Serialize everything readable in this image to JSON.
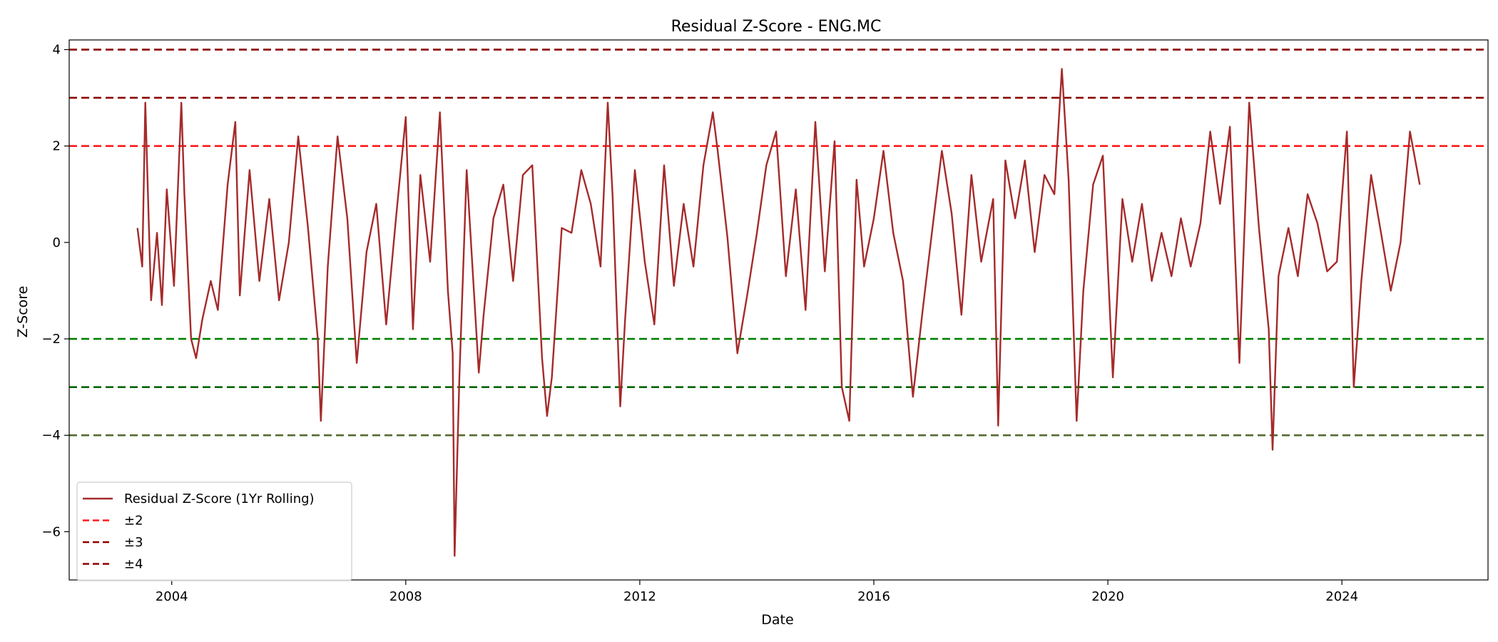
{
  "chart_data": {
    "type": "line",
    "title": "Residual Z-Score - ENG.MC",
    "xlabel": "Date",
    "ylabel": "Z-Score",
    "xlim": [
      "2002-04-01",
      "2026-07-01"
    ],
    "ylim": [
      -7.0,
      4.2
    ],
    "x_ticks": [
      "2004",
      "2008",
      "2012",
      "2016",
      "2020",
      "2024"
    ],
    "y_ticks": [
      -6,
      -4,
      -2,
      0,
      2,
      4
    ],
    "y_tick_labels": [
      "−6",
      "−4",
      "−2",
      "0",
      "2",
      "4"
    ],
    "grid": false,
    "legend_position": "lower-left",
    "series": [
      {
        "name": "Residual Z-Score (1Yr Rolling)",
        "color": "#a52a2a",
        "x": [
          "2003-06-01",
          "2003-07-01",
          "2003-07-20",
          "2003-08-10",
          "2003-08-25",
          "2003-10-01",
          "2003-11-01",
          "2003-12-01",
          "2004-01-15",
          "2004-03-01",
          "2004-03-20",
          "2004-05-01",
          "2004-06-01",
          "2004-07-10",
          "2004-09-01",
          "2004-10-15",
          "2004-12-15",
          "2005-02-01",
          "2005-03-01",
          "2005-05-01",
          "2005-07-01",
          "2005-09-01",
          "2005-11-01",
          "2006-01-01",
          "2006-03-01",
          "2006-05-01",
          "2006-07-01",
          "2006-07-20",
          "2006-09-01",
          "2006-11-01",
          "2007-01-01",
          "2007-03-01",
          "2007-05-01",
          "2007-07-01",
          "2007-09-01",
          "2007-11-01",
          "2008-01-01",
          "2008-02-15",
          "2008-04-01",
          "2008-06-01",
          "2008-08-01",
          "2008-09-20",
          "2008-10-20",
          "2008-11-01",
          "2008-12-01",
          "2009-01-15",
          "2009-04-01",
          "2009-05-01",
          "2009-07-01",
          "2009-09-01",
          "2009-11-01",
          "2010-01-01",
          "2010-03-01",
          "2010-05-01",
          "2010-06-01",
          "2010-07-01",
          "2010-09-01",
          "2010-11-01",
          "2011-01-01",
          "2011-03-01",
          "2011-05-01",
          "2011-06-15",
          "2011-07-15",
          "2011-09-01",
          "2011-10-01",
          "2011-12-01",
          "2012-02-01",
          "2012-04-01",
          "2012-06-01",
          "2012-08-01",
          "2012-10-01",
          "2012-12-01",
          "2013-02-01",
          "2013-04-01",
          "2013-05-01",
          "2013-07-01",
          "2013-09-01",
          "2013-11-01",
          "2014-01-01",
          "2014-03-01",
          "2014-05-01",
          "2014-07-01",
          "2014-09-01",
          "2014-11-01",
          "2015-01-01",
          "2015-03-01",
          "2015-05-01",
          "2015-06-15",
          "2015-08-01",
          "2015-09-15",
          "2015-11-01",
          "2016-01-01",
          "2016-03-01",
          "2016-05-01",
          "2016-07-01",
          "2016-09-01",
          "2016-11-01",
          "2017-01-01",
          "2017-03-01",
          "2017-05-01",
          "2017-07-01",
          "2017-09-01",
          "2017-11-01",
          "2018-01-15",
          "2018-02-15",
          "2018-04-01",
          "2018-06-01",
          "2018-08-01",
          "2018-10-01",
          "2018-12-01",
          "2019-02-01",
          "2019-03-20",
          "2019-05-01",
          "2019-06-20",
          "2019-08-01",
          "2019-10-01",
          "2019-12-01",
          "2020-02-01",
          "2020-04-01",
          "2020-06-01",
          "2020-08-01",
          "2020-10-01",
          "2020-12-01",
          "2021-02-01",
          "2021-04-01",
          "2021-06-01",
          "2021-08-01",
          "2021-10-01",
          "2021-12-01",
          "2022-02-01",
          "2022-04-01",
          "2022-06-01",
          "2022-08-01",
          "2022-10-01",
          "2022-10-25",
          "2022-12-01",
          "2023-02-01",
          "2023-04-01",
          "2023-06-01",
          "2023-08-01",
          "2023-10-01",
          "2023-12-01",
          "2024-02-01",
          "2024-03-15",
          "2024-05-01",
          "2024-07-01",
          "2024-09-01",
          "2024-11-01",
          "2025-01-01",
          "2025-03-01",
          "2025-05-01"
        ],
        "y": [
          0.3,
          -0.5,
          2.9,
          0.5,
          -1.2,
          0.2,
          -1.3,
          1.1,
          -0.9,
          2.9,
          1.0,
          -2.0,
          -2.4,
          -1.6,
          -0.8,
          -1.4,
          1.2,
          2.5,
          -1.1,
          1.5,
          -0.8,
          0.9,
          -1.2,
          0.0,
          2.2,
          0.3,
          -2.0,
          -3.7,
          -0.5,
          2.2,
          0.5,
          -2.5,
          -0.2,
          0.8,
          -1.7,
          0.5,
          2.6,
          -1.8,
          1.4,
          -0.4,
          2.7,
          -1.0,
          -2.3,
          -6.5,
          -2.8,
          1.5,
          -2.7,
          -1.5,
          0.5,
          1.2,
          -0.8,
          1.4,
          1.6,
          -2.4,
          -3.6,
          -2.8,
          0.3,
          0.2,
          1.5,
          0.8,
          -0.5,
          2.9,
          1.0,
          -3.4,
          -1.6,
          1.5,
          -0.4,
          -1.7,
          1.6,
          -0.9,
          0.8,
          -0.5,
          1.6,
          2.7,
          1.9,
          0.1,
          -2.3,
          -1.1,
          0.2,
          1.6,
          2.3,
          -0.7,
          1.1,
          -1.4,
          2.5,
          -0.6,
          2.1,
          -3.0,
          -3.7,
          1.3,
          -0.5,
          0.5,
          1.9,
          0.2,
          -0.8,
          -3.2,
          -1.4,
          0.3,
          1.9,
          0.6,
          -1.5,
          1.4,
          -0.4,
          0.9,
          -3.8,
          1.7,
          0.5,
          1.7,
          -0.2,
          1.4,
          1.0,
          3.6,
          1.3,
          -3.7,
          -1.0,
          1.2,
          1.8,
          -2.8,
          0.9,
          -0.4,
          0.8,
          -0.8,
          0.2,
          -0.7,
          0.5,
          -0.5,
          0.4,
          2.3,
          0.8,
          2.4,
          -2.5,
          2.9,
          0.3,
          -1.8,
          -4.3,
          -0.7,
          0.3,
          -0.7,
          1.0,
          0.4,
          -0.6,
          -0.4,
          2.3,
          -3.0,
          -0.8,
          1.4,
          0.2,
          -1.0,
          0.0,
          2.3,
          1.2
        ]
      }
    ],
    "reference_lines": [
      {
        "name": "±2",
        "color": "#ff1a1a",
        "values": [
          2
        ],
        "in_legend": true
      },
      {
        "name": "",
        "color": "#008000",
        "values": [
          -2
        ],
        "in_legend": false
      },
      {
        "name": "±3",
        "color": "#8b0000",
        "values": [
          3
        ],
        "in_legend": true
      },
      {
        "name": "",
        "color": "#006400",
        "values": [
          -3
        ],
        "in_legend": false
      },
      {
        "name": "±4",
        "color": "#8b0000",
        "values": [
          4
        ],
        "in_legend": true
      },
      {
        "name": "",
        "color": "#556b2f",
        "values": [
          -4
        ],
        "in_legend": false
      }
    ]
  }
}
